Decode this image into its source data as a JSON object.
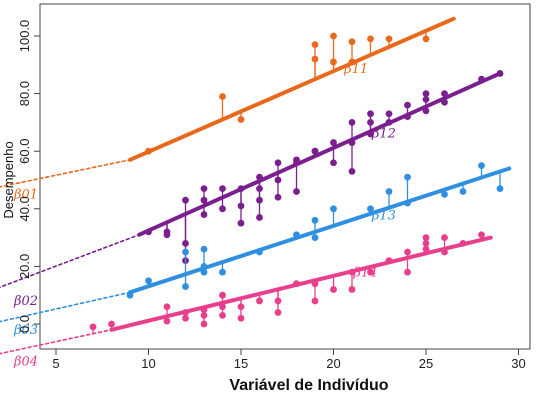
{
  "chart_data": {
    "type": "scatter",
    "xlabel": "Variável de Indivíduo",
    "ylabel": "Desempenho",
    "xlim": [
      4.5,
      30.5
    ],
    "ylim": [
      -3,
      108
    ],
    "x_ticks": [
      5,
      10,
      15,
      20,
      25,
      30
    ],
    "y_ticks": [
      0.0,
      20.0,
      40.0,
      60.0,
      80.0,
      100.0
    ],
    "y_tick_labels": [
      "0.0",
      "20.0",
      "40.0",
      "60.0",
      "80.0",
      "100.0"
    ],
    "grid": false,
    "series": [
      {
        "color": "#e8691b",
        "line": {
          "x": [
            9,
            26.5
          ],
          "y": [
            57,
            106
          ]
        },
        "intercept_trace": {
          "x": [
            0,
            9
          ],
          "y": [
            45,
            57
          ]
        },
        "annotation": "β11",
        "intercept_label": "β01",
        "points": [
          [
            10,
            60
          ],
          [
            14,
            79
          ],
          [
            15,
            71
          ],
          [
            19,
            97
          ],
          [
            19,
            92
          ],
          [
            20,
            100
          ],
          [
            20,
            91
          ],
          [
            21,
            91
          ],
          [
            21,
            98
          ],
          [
            22,
            99
          ],
          [
            23,
            99
          ],
          [
            25,
            99
          ]
        ]
      },
      {
        "color": "#7b1f8f",
        "line": {
          "x": [
            9.5,
            29
          ],
          "y": [
            31,
            87
          ]
        },
        "intercept_trace": {
          "x": [
            0,
            9.5
          ],
          "y": [
            8,
            31
          ]
        },
        "annotation": "β12",
        "intercept_label": "β02",
        "points": [
          [
            10,
            32
          ],
          [
            11,
            32
          ],
          [
            11,
            31
          ],
          [
            12,
            43
          ],
          [
            12,
            28
          ],
          [
            12,
            22
          ],
          [
            13,
            47
          ],
          [
            13,
            38
          ],
          [
            13,
            43
          ],
          [
            14,
            40
          ],
          [
            14,
            47
          ],
          [
            15,
            47
          ],
          [
            15,
            41
          ],
          [
            15,
            35
          ],
          [
            16,
            47
          ],
          [
            16,
            43
          ],
          [
            16,
            51
          ],
          [
            16,
            37
          ],
          [
            17,
            56
          ],
          [
            17,
            50
          ],
          [
            17,
            44
          ],
          [
            18,
            57
          ],
          [
            18,
            56
          ],
          [
            18,
            46
          ],
          [
            19,
            60
          ],
          [
            19,
            60
          ],
          [
            20,
            63
          ],
          [
            20,
            56
          ],
          [
            21,
            63
          ],
          [
            21,
            70
          ],
          [
            21,
            53
          ],
          [
            22,
            73
          ],
          [
            22,
            70
          ],
          [
            22,
            66
          ],
          [
            23,
            73
          ],
          [
            23,
            70
          ],
          [
            24,
            76
          ],
          [
            24,
            72
          ],
          [
            25,
            80
          ],
          [
            25,
            78
          ],
          [
            25,
            74
          ],
          [
            26,
            80
          ],
          [
            26,
            77
          ],
          [
            28,
            85
          ],
          [
            29,
            87
          ]
        ]
      },
      {
        "color": "#2f8fe0",
        "line": {
          "x": [
            9,
            29.5
          ],
          "y": [
            11,
            54
          ]
        },
        "intercept_trace": {
          "x": [
            0,
            9
          ],
          "y": [
            -2,
            11
          ]
        },
        "annotation": "β13",
        "intercept_label": "β03",
        "points": [
          [
            9,
            10
          ],
          [
            10,
            15
          ],
          [
            12,
            25
          ],
          [
            12,
            13
          ],
          [
            13,
            18
          ],
          [
            13,
            26
          ],
          [
            13,
            20
          ],
          [
            14,
            18
          ],
          [
            16,
            25
          ],
          [
            18,
            31
          ],
          [
            19,
            30
          ],
          [
            19,
            36
          ],
          [
            20,
            40
          ],
          [
            22,
            40
          ],
          [
            23,
            46
          ],
          [
            24,
            51
          ],
          [
            24,
            42
          ],
          [
            26,
            45
          ],
          [
            27,
            46
          ],
          [
            28,
            55
          ],
          [
            29,
            47
          ]
        ]
      },
      {
        "color": "#e83e8c",
        "line": {
          "x": [
            8,
            28.5
          ],
          "y": [
            -2,
            30
          ]
        },
        "intercept_trace": {
          "x": [
            0,
            8
          ],
          "y": [
            -13,
            -2
          ]
        },
        "annotation": "β14",
        "intercept_label": "β04",
        "points": [
          [
            7,
            -1
          ],
          [
            8,
            0
          ],
          [
            11,
            1
          ],
          [
            11,
            6
          ],
          [
            12,
            4
          ],
          [
            12,
            2
          ],
          [
            13,
            3
          ],
          [
            13,
            5
          ],
          [
            13,
            0
          ],
          [
            14,
            6
          ],
          [
            14,
            3
          ],
          [
            14,
            10
          ],
          [
            15,
            6
          ],
          [
            15,
            2
          ],
          [
            16,
            8
          ],
          [
            17,
            8
          ],
          [
            17,
            4
          ],
          [
            18,
            14
          ],
          [
            19,
            8
          ],
          [
            19,
            14
          ],
          [
            20,
            12
          ],
          [
            21,
            18
          ],
          [
            21,
            12
          ],
          [
            22,
            18
          ],
          [
            23,
            22
          ],
          [
            24,
            18
          ],
          [
            24,
            25
          ],
          [
            25,
            30
          ],
          [
            25,
            28
          ],
          [
            25,
            26
          ],
          [
            26,
            25
          ],
          [
            26,
            30
          ],
          [
            27,
            28
          ],
          [
            28,
            31
          ]
        ]
      }
    ]
  }
}
